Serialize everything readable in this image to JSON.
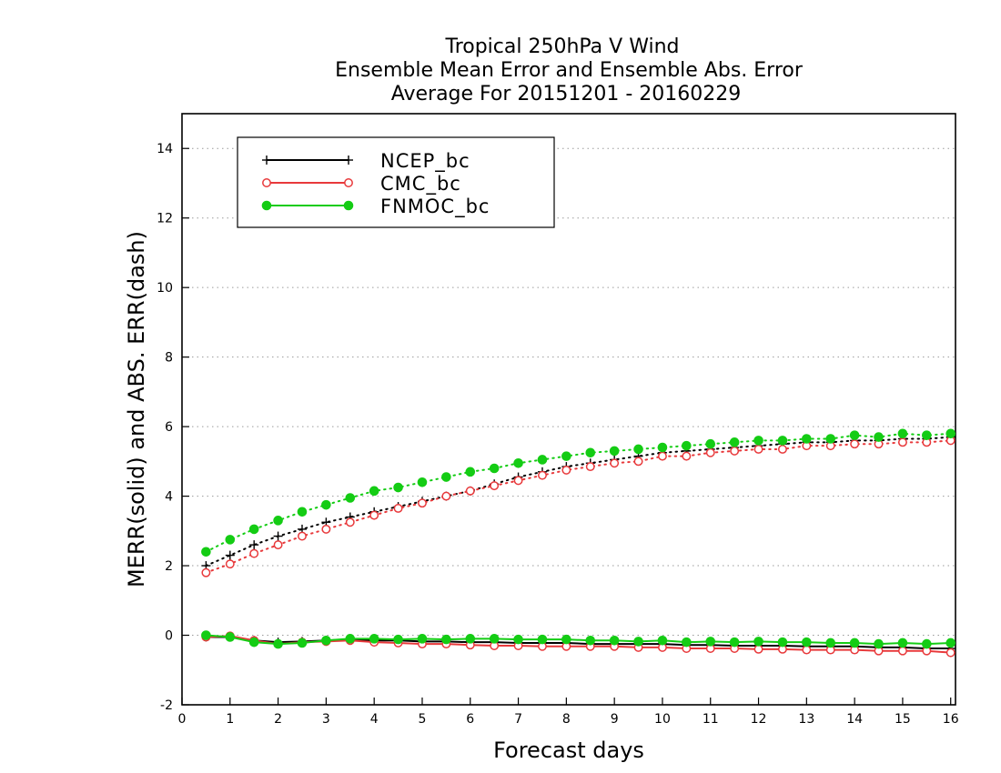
{
  "chart_data": {
    "type": "line",
    "title": [
      "Tropical 250hPa V Wind",
      "Ensemble Mean Error and Ensemble Abs. Error",
      "Average For 20151201 - 20160229"
    ],
    "xlabel": "Forecast days",
    "ylabel": "MERR(solid) and ABS. ERR(dash)",
    "xlim": [
      0,
      16.1
    ],
    "ylim": [
      -2,
      15
    ],
    "x_ticks": [
      0,
      1,
      2,
      3,
      4,
      5,
      6,
      7,
      8,
      9,
      10,
      11,
      12,
      13,
      14,
      15,
      16
    ],
    "y_ticks": [
      -2,
      0,
      2,
      4,
      6,
      8,
      10,
      12,
      14
    ],
    "grid": "horizontal dotted",
    "legend_position": "top-left",
    "x": [
      0.5,
      1.0,
      1.5,
      2.0,
      2.5,
      3.0,
      3.5,
      4.0,
      4.5,
      5.0,
      5.5,
      6.0,
      6.5,
      7.0,
      7.5,
      8.0,
      8.5,
      9.0,
      9.5,
      10.0,
      10.5,
      11.0,
      11.5,
      12.0,
      12.5,
      13.0,
      13.5,
      14.0,
      14.5,
      15.0,
      15.5,
      16.0
    ],
    "series": [
      {
        "name": "NCEP_bc",
        "color": "#000000",
        "marker": "plus",
        "merr": [
          -0.05,
          -0.05,
          -0.15,
          -0.2,
          -0.18,
          -0.15,
          -0.12,
          -0.15,
          -0.15,
          -0.18,
          -0.18,
          -0.2,
          -0.2,
          -0.22,
          -0.22,
          -0.22,
          -0.25,
          -0.25,
          -0.25,
          -0.25,
          -0.28,
          -0.28,
          -0.3,
          -0.3,
          -0.3,
          -0.32,
          -0.32,
          -0.32,
          -0.35,
          -0.35,
          -0.38,
          -0.38
        ],
        "abs_err": [
          2.0,
          2.3,
          2.6,
          2.85,
          3.05,
          3.25,
          3.4,
          3.55,
          3.7,
          3.85,
          4.0,
          4.15,
          4.35,
          4.55,
          4.7,
          4.85,
          4.95,
          5.05,
          5.15,
          5.25,
          5.3,
          5.35,
          5.4,
          5.45,
          5.5,
          5.55,
          5.55,
          5.6,
          5.6,
          5.65,
          5.65,
          5.7
        ]
      },
      {
        "name": "CMC_bc",
        "color": "#e8393b",
        "marker": "open-circle",
        "merr": [
          -0.05,
          -0.02,
          -0.15,
          -0.25,
          -0.2,
          -0.18,
          -0.15,
          -0.2,
          -0.22,
          -0.25,
          -0.25,
          -0.28,
          -0.3,
          -0.3,
          -0.32,
          -0.32,
          -0.32,
          -0.32,
          -0.35,
          -0.35,
          -0.38,
          -0.38,
          -0.38,
          -0.4,
          -0.4,
          -0.42,
          -0.42,
          -0.42,
          -0.45,
          -0.45,
          -0.45,
          -0.5
        ],
        "abs_err": [
          1.8,
          2.05,
          2.35,
          2.6,
          2.85,
          3.05,
          3.25,
          3.45,
          3.65,
          3.8,
          4.0,
          4.15,
          4.3,
          4.45,
          4.6,
          4.75,
          4.85,
          4.95,
          5.0,
          5.15,
          5.15,
          5.25,
          5.3,
          5.35,
          5.35,
          5.45,
          5.45,
          5.5,
          5.5,
          5.55,
          5.55,
          5.6
        ]
      },
      {
        "name": "FNMOC_bc",
        "color": "#14cc14",
        "marker": "filled-circle",
        "merr": [
          0.0,
          -0.05,
          -0.2,
          -0.25,
          -0.22,
          -0.15,
          -0.1,
          -0.1,
          -0.12,
          -0.1,
          -0.12,
          -0.1,
          -0.1,
          -0.12,
          -0.12,
          -0.12,
          -0.15,
          -0.15,
          -0.18,
          -0.15,
          -0.2,
          -0.18,
          -0.2,
          -0.18,
          -0.2,
          -0.2,
          -0.22,
          -0.22,
          -0.25,
          -0.22,
          -0.25,
          -0.22
        ],
        "abs_err": [
          2.4,
          2.75,
          3.05,
          3.3,
          3.55,
          3.75,
          3.95,
          4.15,
          4.25,
          4.4,
          4.55,
          4.7,
          4.8,
          4.95,
          5.05,
          5.15,
          5.25,
          5.3,
          5.35,
          5.4,
          5.45,
          5.5,
          5.55,
          5.6,
          5.6,
          5.65,
          5.65,
          5.75,
          5.7,
          5.8,
          5.75,
          5.8
        ]
      }
    ]
  }
}
